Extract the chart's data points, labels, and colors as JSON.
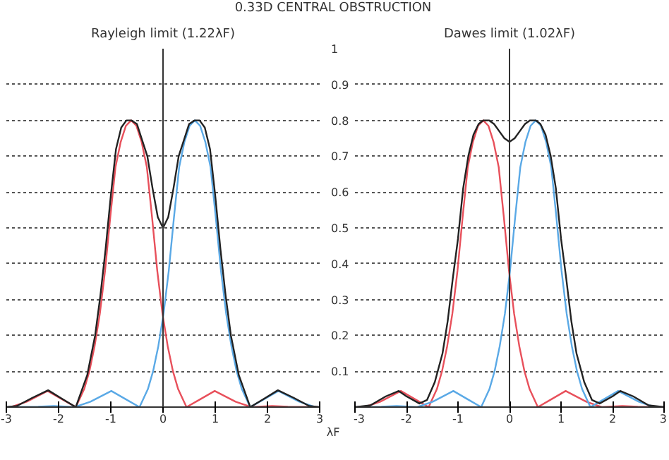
{
  "chart_data": [
    {
      "type": "line",
      "title": "0.33D CENTRAL OBSTRUCTION",
      "xlabel": "λF",
      "xlim": [
        -3,
        3
      ],
      "xticks": [
        -3,
        -2,
        -1,
        0,
        1,
        2,
        3
      ],
      "ylim": [
        0,
        1
      ],
      "yticks": [
        0.1,
        0.2,
        0.3,
        0.4,
        0.5,
        0.6,
        0.7,
        0.8,
        0.9,
        1
      ],
      "grid": "y",
      "ref_lines": [
        {
          "axis": "x",
          "value": 0,
          "label": "Rayleigh limit (1.22λF)",
          "color": "#333333"
        }
      ],
      "series": [
        {
          "color": "#e8505b",
          "x": [
            -3,
            -2.91,
            -2.61,
            -2.21,
            -1.91,
            -1.67,
            -1.51,
            -1.41,
            -1.31,
            -1.21,
            -1.11,
            -1.01,
            -0.91,
            -0.81,
            -0.71,
            -0.61,
            -0.51,
            -0.41,
            -0.31,
            -0.21,
            -0.11,
            -0.01,
            0.09,
            0.19,
            0.29,
            0.45,
            0.69,
            0.99,
            1.39,
            1.69,
            2.09,
            2.39,
            3
          ],
          "values": [
            0,
            0,
            0.015,
            0.045,
            0.02,
            0,
            0.05,
            0.1,
            0.17,
            0.26,
            0.38,
            0.53,
            0.67,
            0.74,
            0.785,
            0.8,
            0.785,
            0.74,
            0.67,
            0.53,
            0.38,
            0.26,
            0.17,
            0.1,
            0.05,
            0,
            0.02,
            0.045,
            0.015,
            0,
            0.003,
            0.001,
            0
          ]
        },
        {
          "color": "#5aa9e6",
          "x": [
            -3,
            -2.39,
            -2.09,
            -1.69,
            -1.39,
            -0.99,
            -0.69,
            -0.45,
            -0.29,
            -0.19,
            -0.09,
            0.01,
            0.11,
            0.21,
            0.31,
            0.41,
            0.51,
            0.61,
            0.71,
            0.81,
            0.91,
            1.01,
            1.11,
            1.21,
            1.31,
            1.41,
            1.51,
            1.67,
            1.91,
            2.21,
            2.61,
            2.91,
            3
          ],
          "values": [
            0,
            0.001,
            0.003,
            0,
            0.015,
            0.045,
            0.02,
            0,
            0.05,
            0.1,
            0.17,
            0.26,
            0.38,
            0.53,
            0.67,
            0.74,
            0.785,
            0.8,
            0.785,
            0.74,
            0.67,
            0.53,
            0.38,
            0.26,
            0.17,
            0.1,
            0.05,
            0,
            0.02,
            0.045,
            0.015,
            0,
            0
          ]
        },
        {
          "color": "#222222",
          "x": [
            -3,
            -2.8,
            -2.5,
            -2.2,
            -1.9,
            -1.67,
            -1.45,
            -1.3,
            -1.2,
            -1.1,
            -1,
            -0.9,
            -0.8,
            -0.7,
            -0.61,
            -0.5,
            -0.4,
            -0.3,
            -0.2,
            -0.1,
            0,
            0.1,
            0.2,
            0.3,
            0.4,
            0.5,
            0.61,
            0.7,
            0.8,
            0.9,
            1,
            1.1,
            1.2,
            1.3,
            1.45,
            1.67,
            1.9,
            2.2,
            2.5,
            2.8,
            3
          ],
          "values": [
            0,
            0.003,
            0.026,
            0.047,
            0.02,
            0,
            0.09,
            0.2,
            0.31,
            0.44,
            0.59,
            0.72,
            0.78,
            0.8,
            0.8,
            0.79,
            0.745,
            0.7,
            0.61,
            0.53,
            0.5,
            0.53,
            0.61,
            0.7,
            0.745,
            0.79,
            0.8,
            0.8,
            0.78,
            0.72,
            0.59,
            0.44,
            0.31,
            0.2,
            0.09,
            0,
            0.02,
            0.047,
            0.026,
            0.003,
            0
          ]
        }
      ]
    },
    {
      "type": "line",
      "xlim": [
        -3,
        3
      ],
      "xticks": [
        -3,
        -2,
        -1,
        0,
        1,
        2,
        3
      ],
      "ylim": [
        0,
        1
      ],
      "yticks": [
        0.1,
        0.2,
        0.3,
        0.4,
        0.5,
        0.6,
        0.7,
        0.8,
        0.9,
        1
      ],
      "grid": "y",
      "tick_labels": "x",
      "ref_lines": [
        {
          "axis": "x",
          "value": 0,
          "label": "Dawes limit (1.02λF)",
          "color": "#333333"
        }
      ],
      "series": [
        {
          "color": "#e8505b",
          "x": [
            -3,
            -2.81,
            -2.51,
            -2.11,
            -1.81,
            -1.57,
            -1.41,
            -1.31,
            -1.21,
            -1.11,
            -1.01,
            -0.91,
            -0.81,
            -0.71,
            -0.61,
            -0.51,
            -0.41,
            -0.31,
            -0.21,
            -0.11,
            -0.01,
            0.09,
            0.19,
            0.29,
            0.39,
            0.55,
            0.79,
            1.09,
            1.49,
            1.79,
            2.19,
            2.49,
            3
          ],
          "values": [
            0,
            0,
            0.015,
            0.045,
            0.02,
            0,
            0.05,
            0.1,
            0.17,
            0.26,
            0.38,
            0.53,
            0.67,
            0.74,
            0.785,
            0.8,
            0.785,
            0.74,
            0.67,
            0.53,
            0.38,
            0.26,
            0.17,
            0.1,
            0.05,
            0,
            0.02,
            0.045,
            0.015,
            0,
            0.003,
            0.001,
            0
          ]
        },
        {
          "color": "#5aa9e6",
          "x": [
            -3,
            -2.49,
            -2.19,
            -1.79,
            -1.49,
            -1.09,
            -0.79,
            -0.55,
            -0.39,
            -0.29,
            -0.19,
            -0.09,
            0.01,
            0.11,
            0.21,
            0.31,
            0.41,
            0.51,
            0.61,
            0.71,
            0.81,
            0.91,
            1.01,
            1.11,
            1.21,
            1.31,
            1.41,
            1.57,
            1.81,
            2.11,
            2.51,
            2.81,
            3
          ],
          "values": [
            0,
            0.001,
            0.003,
            0,
            0.015,
            0.045,
            0.02,
            0,
            0.05,
            0.1,
            0.17,
            0.26,
            0.38,
            0.53,
            0.67,
            0.74,
            0.785,
            0.8,
            0.785,
            0.74,
            0.67,
            0.53,
            0.38,
            0.26,
            0.17,
            0.1,
            0.05,
            0,
            0.02,
            0.045,
            0.015,
            0,
            0
          ]
        },
        {
          "color": "#222222",
          "x": [
            -3,
            -2.7,
            -2.4,
            -2.15,
            -2,
            -1.75,
            -1.6,
            -1.45,
            -1.3,
            -1.2,
            -1.1,
            -1,
            -0.9,
            -0.8,
            -0.7,
            -0.6,
            -0.51,
            -0.4,
            -0.3,
            -0.2,
            -0.1,
            0,
            0.1,
            0.2,
            0.3,
            0.4,
            0.51,
            0.6,
            0.7,
            0.8,
            0.9,
            1,
            1.1,
            1.2,
            1.3,
            1.45,
            1.6,
            1.75,
            2,
            2.15,
            2.4,
            2.7,
            3
          ],
          "values": [
            0,
            0.005,
            0.03,
            0.045,
            0.03,
            0.01,
            0.02,
            0.07,
            0.15,
            0.24,
            0.36,
            0.47,
            0.61,
            0.7,
            0.76,
            0.79,
            0.8,
            0.8,
            0.79,
            0.77,
            0.75,
            0.74,
            0.75,
            0.77,
            0.79,
            0.8,
            0.8,
            0.79,
            0.76,
            0.7,
            0.61,
            0.47,
            0.36,
            0.24,
            0.15,
            0.07,
            0.02,
            0.01,
            0.03,
            0.045,
            0.03,
            0.005,
            0
          ]
        }
      ]
    }
  ]
}
